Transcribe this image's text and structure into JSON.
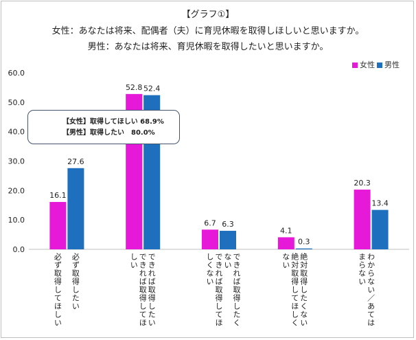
{
  "header": {
    "title": "【グラフ①】",
    "line1": "女性：あなたは将来、配偶者（夫）に育児休暇を取得しほしいと思いますか。",
    "line2": "男性：あなたは将来、育児休暇を取得したいと思いますか。"
  },
  "callout": {
    "line1": "【女性】取得してほしい 68.9%",
    "line2": "【男性】取得したい　80.0%"
  },
  "chart_data": {
    "type": "bar",
    "title": "",
    "xlabel": "",
    "ylabel": "",
    "ylim": [
      0,
      60
    ],
    "yticks": [
      "0.0",
      "10.0",
      "20.0",
      "30.0",
      "40.0",
      "50.0",
      "60.0"
    ],
    "grid": false,
    "legend_position": "top-right",
    "colors": {
      "female": "#e619d8",
      "male": "#1f6fbf"
    },
    "groups": [
      {
        "female_label": "必ず取得してほしい",
        "male_label": "必ず取得したい",
        "female": 16.1,
        "male": 27.6
      },
      {
        "female_label": "できれば取得してほしい",
        "male_label": "できれば取得したい",
        "female": 52.8,
        "male": 52.4
      },
      {
        "female_label": "できれば取得してほしくない",
        "male_label": "できれば取得したくない",
        "female": 6.7,
        "male": 6.3
      },
      {
        "female_label": "絶対取得してほしくない",
        "male_label": "絶対取得したくない",
        "female": 4.1,
        "male": 0.3
      },
      {
        "female_label": "わからない／あてはまらない",
        "male_label": "",
        "female": 20.3,
        "male": 13.4
      }
    ],
    "series": [
      {
        "name": "女性",
        "values": [
          16.1,
          52.8,
          6.7,
          4.1,
          20.3
        ]
      },
      {
        "name": "男性",
        "values": [
          27.6,
          52.4,
          6.3,
          0.3,
          13.4
        ]
      }
    ]
  }
}
